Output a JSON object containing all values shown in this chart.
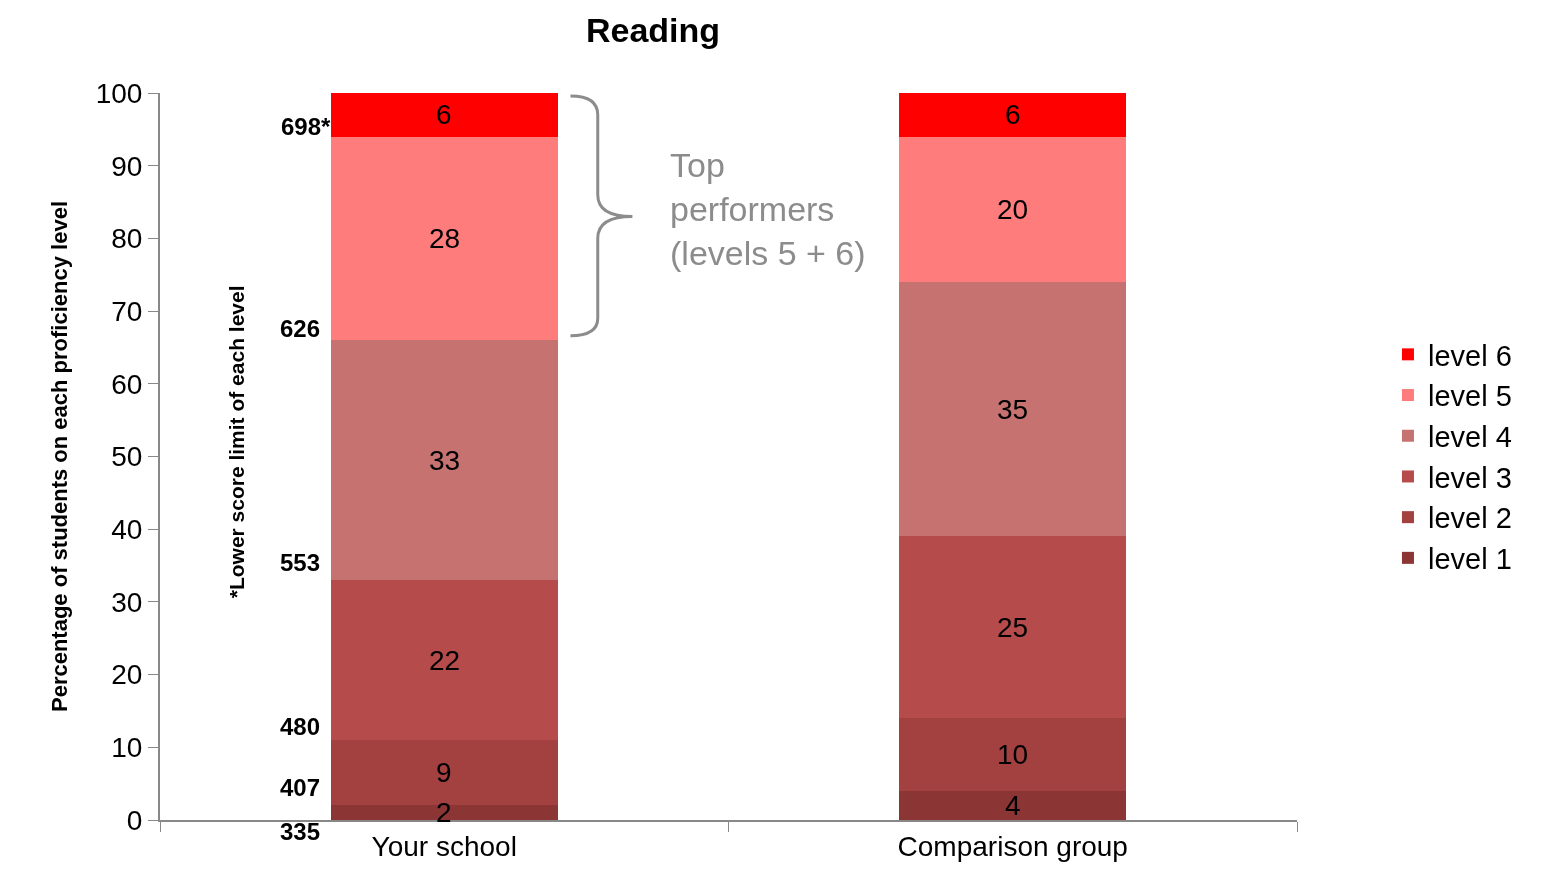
{
  "chart_data": {
    "type": "bar",
    "stacked": true,
    "title": "Reading",
    "ylabel": "Percentage of students on each proficiency level",
    "categories": [
      "Your school",
      "Comparison group"
    ],
    "series": [
      {
        "name": "level 1",
        "color": "#8b3535",
        "values": [
          2,
          4
        ]
      },
      {
        "name": "level 2",
        "color": "#a34040",
        "values": [
          9,
          10
        ]
      },
      {
        "name": "level 3",
        "color": "#b54b4a",
        "values": [
          22,
          25
        ]
      },
      {
        "name": "level 4",
        "color": "#c67271",
        "values": [
          33,
          35
        ]
      },
      {
        "name": "level 5",
        "color": "#ff7c7c",
        "values": [
          28,
          20
        ]
      },
      {
        "name": "level 6",
        "color": "#ff0000",
        "values": [
          6,
          6
        ]
      }
    ],
    "ylim": [
      0,
      100
    ],
    "yticks": [
      0,
      10,
      20,
      30,
      40,
      50,
      60,
      70,
      80,
      90,
      100
    ],
    "grid": false,
    "legend": "right",
    "data_labels": true,
    "annotations": [
      "335",
      "407",
      "480",
      "553",
      "626",
      "698*",
      "*Lower score limit of each level",
      "Top\nperformers\n(levels 5 + 6)"
    ]
  }
}
